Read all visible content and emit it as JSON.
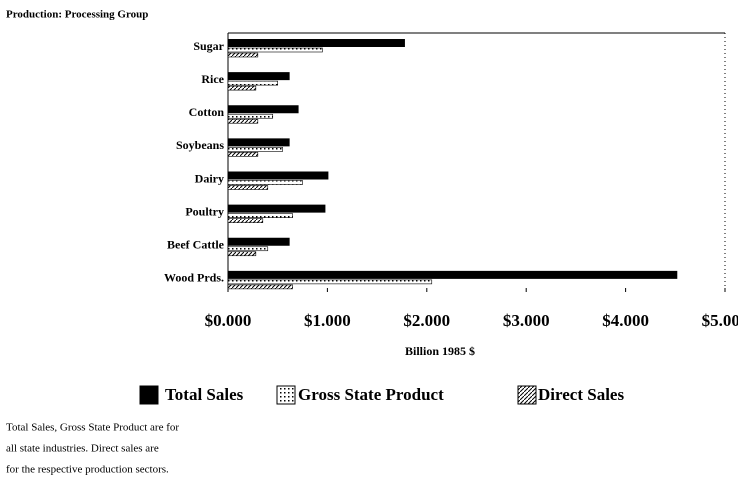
{
  "chart_data": {
    "type": "hbar",
    "title": "Production: Processing Group",
    "xlabel": "Billion 1985 $",
    "categories": [
      "Sugar",
      "Rice",
      "Cotton",
      "Soybeans",
      "Dairy",
      "Poultry",
      "Beef Cattle",
      "Wood Prds."
    ],
    "series": [
      {
        "name": "Total Sales",
        "color": "#000000",
        "pattern": "solid",
        "values": [
          1.78,
          0.62,
          0.71,
          0.62,
          1.01,
          0.98,
          0.62,
          4.52
        ]
      },
      {
        "name": "Gross State Product",
        "color": "#000000",
        "pattern": "dots",
        "values": [
          0.95,
          0.5,
          0.45,
          0.55,
          0.75,
          0.65,
          0.4,
          2.05
        ]
      },
      {
        "name": "Direct Sales",
        "color": "#000000",
        "pattern": "hatch",
        "values": [
          0.3,
          0.28,
          0.3,
          0.3,
          0.4,
          0.35,
          0.28,
          0.65
        ]
      }
    ],
    "xlim": [
      0,
      5
    ],
    "xticks": [
      {
        "value": 0,
        "label": "$0.000"
      },
      {
        "value": 1,
        "label": "$1.000"
      },
      {
        "value": 2,
        "label": "$2.000"
      },
      {
        "value": 3,
        "label": "$3.000"
      },
      {
        "value": 4,
        "label": "$4.000"
      },
      {
        "value": 5,
        "label": "$5.000"
      }
    ],
    "footnote": [
      "Total Sales, Gross State Product are for",
      "all state industries. Direct sales are",
      "for the respective production sectors."
    ]
  }
}
